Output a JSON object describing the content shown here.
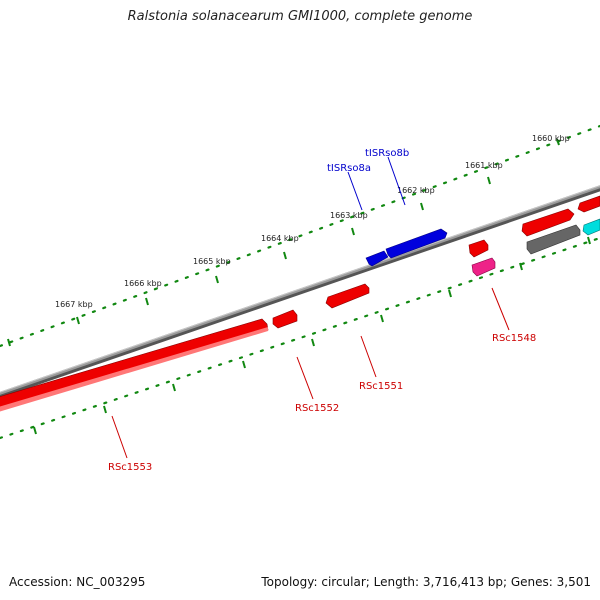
{
  "title": "Ralstonia solanacearum GMI1000, complete genome",
  "footer": {
    "accession": "Accession: NC_003295",
    "stats": "Topology: circular; Length: 3,716,413 bp; Genes: 3,501"
  },
  "colors": {
    "backbone": "#808080",
    "forward_cds": "#ee0000",
    "trna": "#0000dd",
    "pseudo": "#ee2288",
    "unknown": "#666666",
    "rrna": "#00dddd",
    "ticks": "#118811",
    "gene_label": "#cc0000",
    "trna_label": "#0000cc"
  },
  "ruler": {
    "tick_labels": [
      "1660 kbp",
      "1661 kbp",
      "1662 kbp",
      "1663 kbp",
      "1664 kbp",
      "1665 kbp",
      "1666 kbp",
      "1667 kbp"
    ]
  },
  "genes": {
    "labels": {
      "tISRso8b": "tISRso8b",
      "tISRso8a": "tISRso8a",
      "RSc1548": "RSc1548",
      "RSc1551": "RSc1551",
      "RSc1552": "RSc1552",
      "RSc1553": "RSc1553"
    }
  }
}
